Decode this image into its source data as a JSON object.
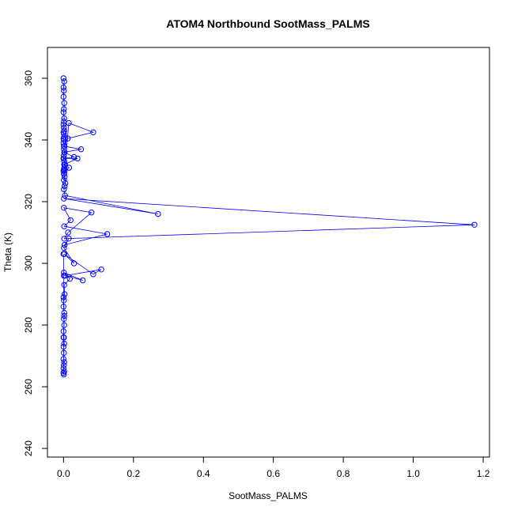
{
  "chart_data": {
    "type": "line",
    "title": "ATOM4 Northbound SootMass_PALMS",
    "xlabel": "SootMass_PALMS",
    "ylabel": "Theta (K)",
    "xlim": [
      -0.046,
      1.218
    ],
    "ylim": [
      237.2,
      370.0
    ],
    "xticks": [
      0,
      0.2,
      0.4,
      0.6,
      0.8,
      1,
      1.2
    ],
    "xtick_labels": [
      "0.0",
      "0.2",
      "0.4",
      "0.6",
      "0.8",
      "1.0",
      "1.2"
    ],
    "yticks": [
      240,
      260,
      280,
      300,
      320,
      340,
      360
    ],
    "ytick_labels": [
      "240",
      "260",
      "280",
      "300",
      "320",
      "340",
      "360"
    ],
    "grid": false,
    "colors": {
      "series": "#0000ff",
      "axis": "#000000"
    },
    "series": [
      {
        "marker": "open-circle",
        "x": [
          0,
          0.002,
          0,
          0.001,
          0,
          0.002,
          0.001,
          0,
          0.002,
          0.001,
          0,
          0.001,
          0.002,
          0,
          0.001,
          0.002,
          0,
          0.001,
          0,
          0.002,
          0.001,
          0.003,
          0.001,
          0,
          0.002,
          0.004,
          0.002,
          0.001,
          0,
          0.002,
          0.003,
          0.001,
          0.015,
          0.085,
          0.012,
          0.001,
          0.05,
          0.002,
          0.03,
          0.001,
          0.04,
          0.002,
          0.016,
          0.003,
          0.001,
          0.005,
          0.003,
          0.001,
          0.004,
          0.27,
          0.001,
          1.175,
          0.002,
          0.013,
          0.08,
          0.001,
          0.02,
          0.002,
          0.125,
          0.003,
          0.015,
          0.001,
          0.03,
          0.002,
          0.085,
          0.108,
          0.004,
          0.055,
          0.001,
          0.018,
          0.002,
          0.003,
          0.001,
          0,
          0.002,
          0.001,
          0.002,
          0,
          0.001,
          0.002,
          0,
          0.001,
          0,
          0.002,
          0.001,
          0,
          0.002,
          0,
          0.001,
          0,
          0.002,
          0,
          0.001,
          0
        ],
        "y": [
          360,
          359,
          357,
          356,
          354,
          352,
          350,
          349,
          347,
          346,
          345,
          344,
          343,
          342.5,
          342,
          341,
          340.5,
          340,
          339,
          338,
          337,
          336,
          335,
          334,
          333,
          332,
          331,
          330.5,
          330,
          329,
          328,
          327,
          345.5,
          342.5,
          340.5,
          338,
          337,
          336,
          334.5,
          334,
          334,
          332,
          331,
          330,
          329,
          326,
          325,
          324,
          322,
          316,
          321,
          312.5,
          308,
          310,
          316.5,
          318,
          314,
          312,
          309.5,
          306,
          308,
          305,
          300,
          303,
          296.5,
          298,
          296,
          294.5,
          297,
          295,
          293,
          290,
          288,
          286,
          284,
          282,
          280,
          278,
          276,
          274,
          273,
          271,
          269,
          268,
          267,
          266,
          265,
          264.5,
          264,
          276,
          283,
          289,
          296,
          303
        ]
      }
    ]
  }
}
